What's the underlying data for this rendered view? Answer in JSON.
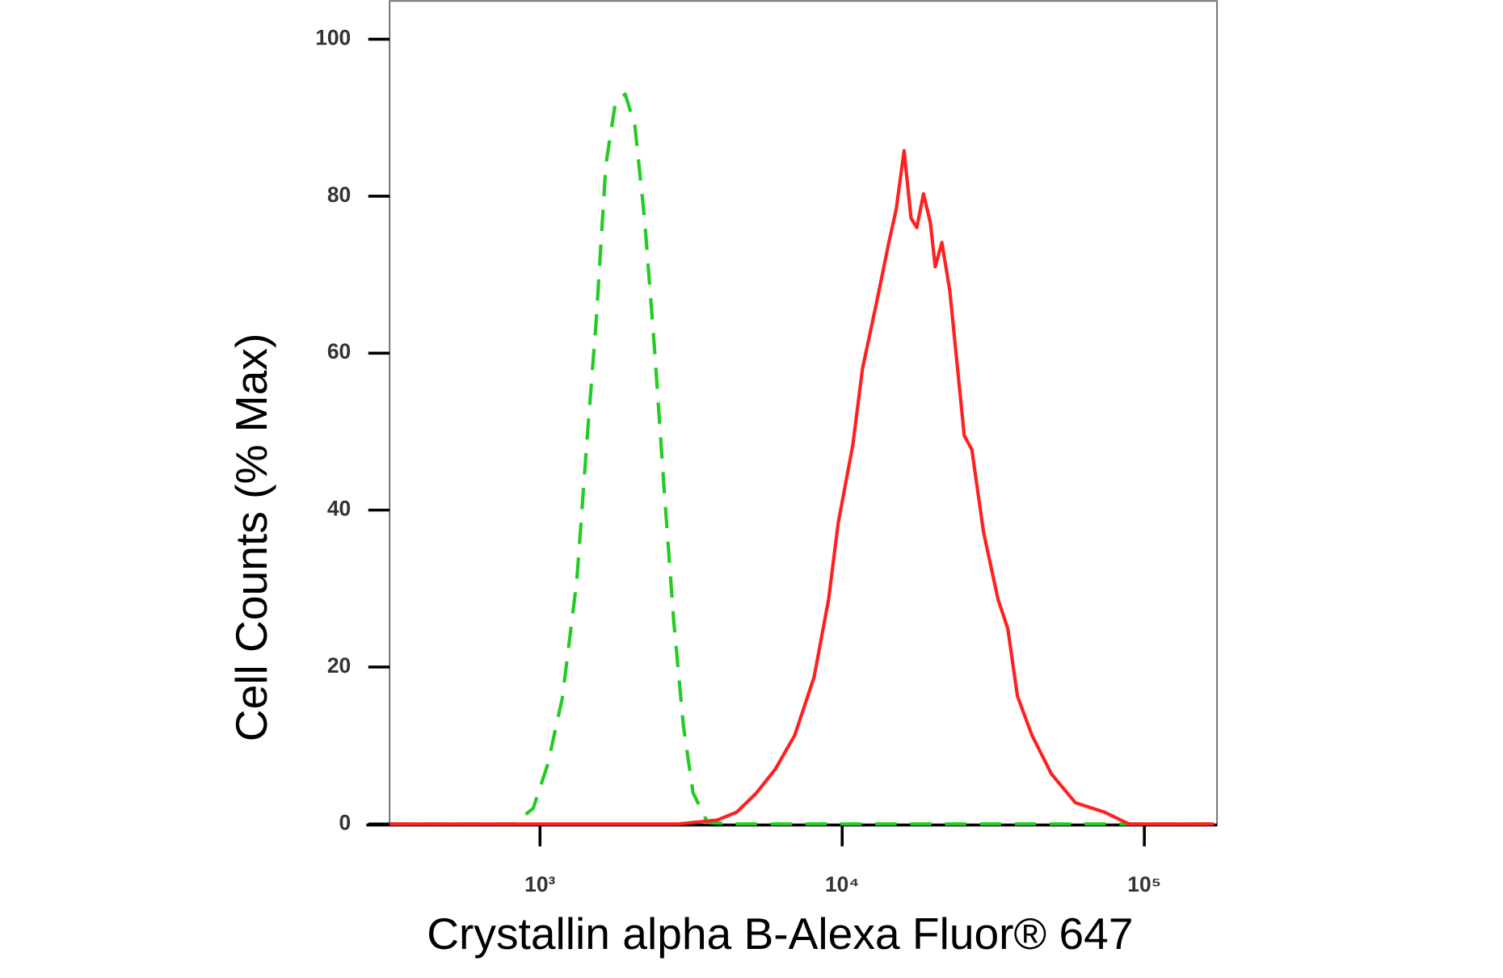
{
  "chart_data": {
    "type": "line",
    "xlabel": "Crystallin alpha B-Alexa Fluor® 647",
    "ylabel": "Cell Counts (% Max)",
    "xscale": "log",
    "xlim": [
      318,
      174000
    ],
    "ylim": [
      -0.5,
      105
    ],
    "xticks": [
      {
        "value": 1000,
        "label": "10³"
      },
      {
        "value": 10000,
        "label": "10⁴"
      },
      {
        "value": 100000,
        "label": "10⁵"
      }
    ],
    "yticks": [
      0,
      20,
      40,
      60,
      80,
      100
    ],
    "series": [
      {
        "color": "#22cc22",
        "dash": true,
        "x": [
          318,
          819,
          950,
          1061,
          1185,
          1324,
          1425,
          1534,
          1652,
          1778,
          1915,
          2061,
          2220,
          2389,
          2572,
          2769,
          2981,
          3209,
          3584,
          4475,
          170000
        ],
        "values": [
          0,
          0,
          2,
          7.6,
          16,
          31,
          48,
          64,
          84,
          92,
          93,
          89,
          77,
          61,
          43,
          26,
          12.6,
          4,
          0.2,
          0,
          0
        ]
      },
      {
        "color": "#ff2020",
        "dash": false,
        "x": [
          318,
          2873,
          3859,
          4475,
          5188,
          6012,
          6966,
          8072,
          9016,
          9708,
          10846,
          11672,
          13039,
          14255,
          15104,
          16030,
          16901,
          17660,
          18584,
          19590,
          20320,
          21380,
          22700,
          24430,
          25350,
          26870,
          29360,
          32810,
          35320,
          38020,
          42470,
          49200,
          59160,
          73890,
          88890,
          170000
        ],
        "values": [
          0,
          0,
          0.5,
          1.5,
          3.9,
          7,
          11.3,
          18.7,
          28.6,
          38.4,
          48.3,
          58,
          66.7,
          74,
          78.4,
          85.8,
          77.2,
          76,
          80.3,
          76.6,
          71,
          74.1,
          68,
          55.7,
          49.5,
          47.7,
          37.2,
          28.6,
          24.9,
          16.3,
          11.3,
          6.4,
          2.7,
          1.5,
          0,
          0
        ]
      }
    ]
  }
}
